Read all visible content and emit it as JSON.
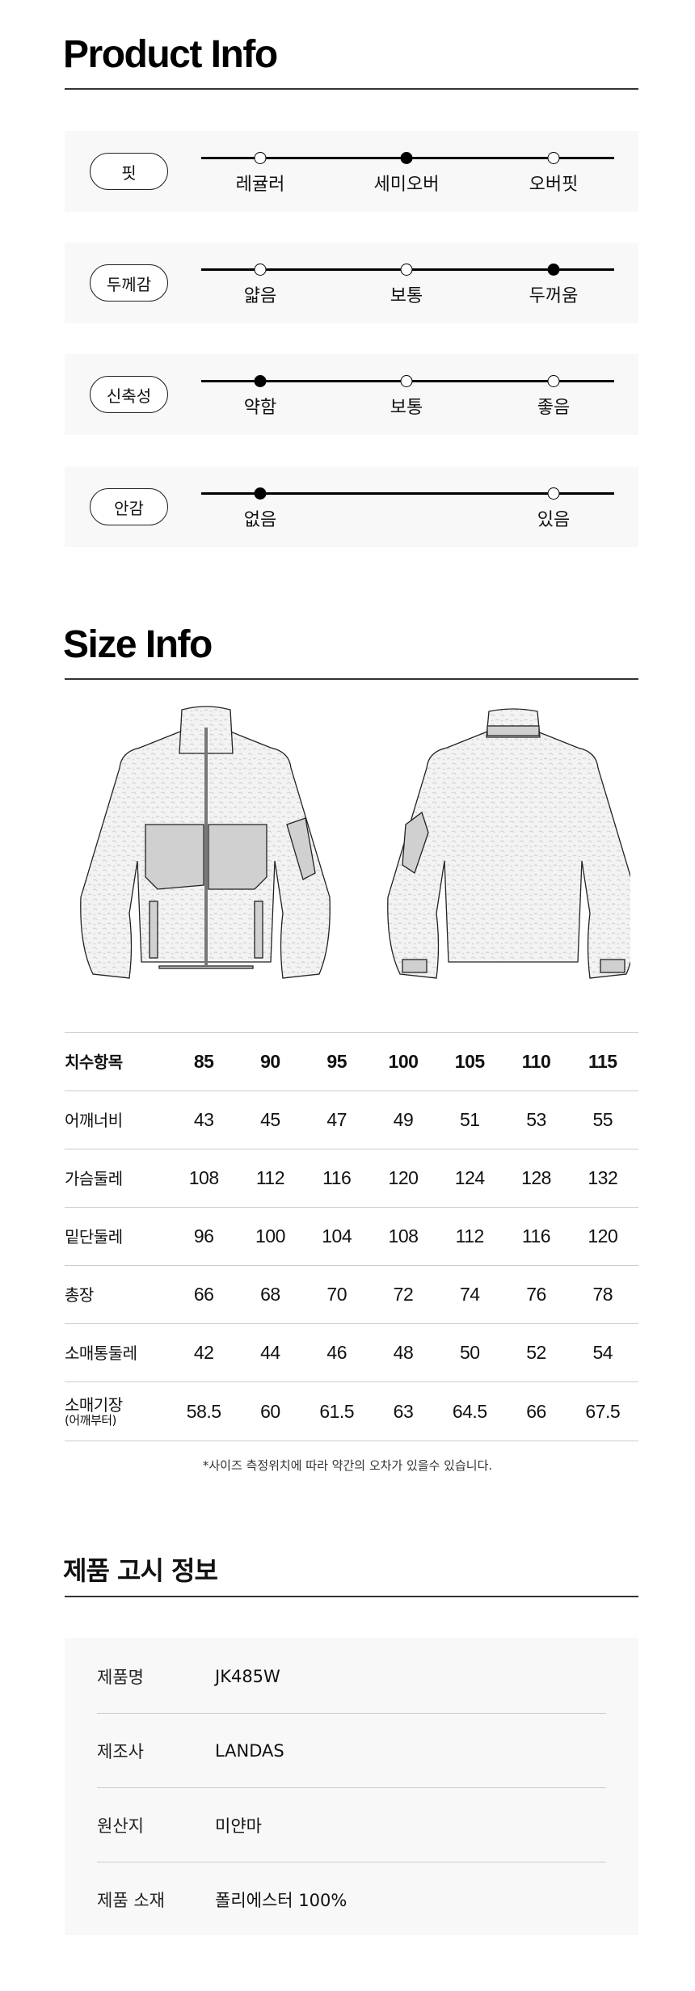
{
  "product_info": {
    "title": "Product Info",
    "attributes": [
      {
        "label": "핏",
        "options": [
          "레귤러",
          "세미오버",
          "오버핏"
        ],
        "selected": "세미오버"
      },
      {
        "label": "두께감",
        "options": [
          "얇음",
          "보통",
          "두꺼움"
        ],
        "selected": "두꺼움"
      },
      {
        "label": "신축성",
        "options": [
          "약함",
          "보통",
          "좋음"
        ],
        "selected": "약함"
      },
      {
        "label": "안감",
        "options": [
          "없음",
          "있음"
        ],
        "selected": "없음"
      }
    ]
  },
  "size_info": {
    "title": "Size Info",
    "header": {
      "label": "치수항목",
      "sizes": [
        "85",
        "90",
        "95",
        "100",
        "105",
        "110",
        "115"
      ]
    },
    "rows": [
      {
        "label": "어깨너비",
        "values": [
          "43",
          "45",
          "47",
          "49",
          "51",
          "53",
          "55"
        ]
      },
      {
        "label": "가슴둘레",
        "values": [
          "108",
          "112",
          "116",
          "120",
          "124",
          "128",
          "132"
        ]
      },
      {
        "label": "밑단둘레",
        "values": [
          "96",
          "100",
          "104",
          "108",
          "112",
          "116",
          "120"
        ]
      },
      {
        "label": "총장",
        "values": [
          "66",
          "68",
          "70",
          "72",
          "74",
          "76",
          "78"
        ]
      },
      {
        "label": "소매통둘레",
        "values": [
          "42",
          "44",
          "46",
          "48",
          "50",
          "52",
          "54"
        ]
      },
      {
        "label": "소매기장",
        "sublabel": "(어깨부터)",
        "values": [
          "58.5",
          "60",
          "61.5",
          "63",
          "64.5",
          "66",
          "67.5"
        ]
      }
    ],
    "note": "*사이즈 측정위치에 따라  약간의 오차가 있을수 있습니다."
  },
  "notice": {
    "title": "제품 고시 정보",
    "rows": [
      {
        "key": "제품명",
        "value": "JK485W"
      },
      {
        "key": "제조사",
        "value": "LANDAS"
      },
      {
        "key": "원산지",
        "value": "미얀마"
      },
      {
        "key": "제품 소재",
        "value": "폴리에스터 100%"
      }
    ]
  }
}
